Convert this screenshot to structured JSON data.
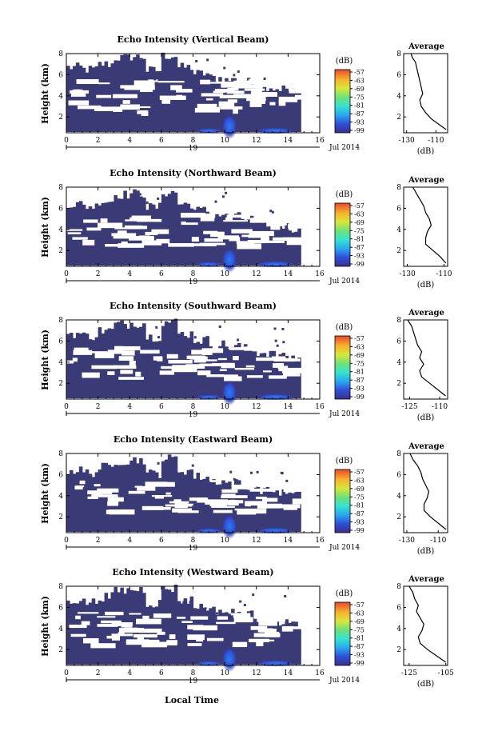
{
  "shared": {
    "xlabel": "Local Time",
    "ylabel": "Height (km)",
    "date_start": "19",
    "date_end": "Jul 2014",
    "colorbar_unit": "(dB)",
    "profile_title": "Average",
    "profile_xlabel": "(dB)"
  },
  "chart_data": [
    {
      "type": "heatmap",
      "title": "Echo Intensity (Vertical Beam)",
      "x_range": [
        0,
        16
      ],
      "x_ticks": [
        0,
        2,
        4,
        6,
        8,
        10,
        12,
        14,
        16
      ],
      "y_range": [
        0.5,
        8
      ],
      "y_ticks": [
        2,
        4,
        6,
        8
      ],
      "colorbar_ticks": [
        -57,
        -63,
        -69,
        -75,
        -81,
        -87,
        -93,
        -99
      ],
      "profile": {
        "x_ticks": [
          -130,
          -110
        ],
        "x_range": [
          -132,
          -102
        ],
        "points": [
          [
            -103,
            0.8
          ],
          [
            -107,
            1.2
          ],
          [
            -113,
            1.8
          ],
          [
            -117,
            2.4
          ],
          [
            -120,
            3.0
          ],
          [
            -121,
            3.6
          ],
          [
            -119,
            4.2
          ],
          [
            -120,
            4.8
          ],
          [
            -121,
            5.4
          ],
          [
            -122,
            6.0
          ],
          [
            -123,
            6.6
          ],
          [
            -124,
            7.2
          ],
          [
            -126,
            7.6
          ],
          [
            -127,
            8.0
          ]
        ]
      }
    },
    {
      "type": "heatmap",
      "title": "Echo Intensity (Northward Beam)",
      "x_range": [
        0,
        16
      ],
      "x_ticks": [
        0,
        2,
        4,
        6,
        8,
        10,
        12,
        14,
        16
      ],
      "y_range": [
        0.5,
        8
      ],
      "y_ticks": [
        2,
        4,
        6,
        8
      ],
      "colorbar_ticks": [
        -57,
        -63,
        -69,
        -75,
        -81,
        -87,
        -93,
        -99
      ],
      "profile": {
        "x_ticks": [
          -130,
          -110
        ],
        "x_range": [
          -132,
          -108
        ],
        "points": [
          [
            -109,
            0.8
          ],
          [
            -112,
            1.4
          ],
          [
            -116,
            2.0
          ],
          [
            -120,
            2.6
          ],
          [
            -120,
            3.2
          ],
          [
            -119,
            3.8
          ],
          [
            -117,
            4.4
          ],
          [
            -118,
            5.0
          ],
          [
            -120,
            5.6
          ],
          [
            -121,
            6.2
          ],
          [
            -123,
            6.8
          ],
          [
            -125,
            7.4
          ],
          [
            -127,
            8.0
          ]
        ]
      }
    },
    {
      "type": "heatmap",
      "title": "Echo Intensity (Southward Beam)",
      "x_range": [
        0,
        16
      ],
      "x_ticks": [
        0,
        2,
        4,
        6,
        8,
        10,
        12,
        14,
        16
      ],
      "y_range": [
        0.5,
        8
      ],
      "y_ticks": [
        2,
        4,
        6,
        8
      ],
      "colorbar_ticks": [
        -57,
        -63,
        -69,
        -75,
        -81,
        -87,
        -93,
        -99
      ],
      "profile": {
        "x_ticks": [
          -125,
          -110
        ],
        "x_range": [
          -128,
          -106
        ],
        "points": [
          [
            -107,
            0.8
          ],
          [
            -111,
            1.4
          ],
          [
            -115,
            2.0
          ],
          [
            -119,
            2.6
          ],
          [
            -120,
            3.2
          ],
          [
            -118,
            3.8
          ],
          [
            -120,
            4.4
          ],
          [
            -119,
            5.0
          ],
          [
            -121,
            5.6
          ],
          [
            -122,
            6.2
          ],
          [
            -123,
            6.8
          ],
          [
            -124,
            7.4
          ],
          [
            -126,
            8.0
          ]
        ]
      }
    },
    {
      "type": "heatmap",
      "title": "Echo Intensity (Eastward Beam)",
      "x_range": [
        0,
        16
      ],
      "x_ticks": [
        0,
        2,
        4,
        6,
        8,
        10,
        12,
        14,
        16
      ],
      "y_range": [
        0.5,
        8
      ],
      "y_ticks": [
        2,
        4,
        6,
        8
      ],
      "colorbar_ticks": [
        -57,
        -63,
        -69,
        -75,
        -81,
        -87,
        -93,
        -99
      ],
      "profile": {
        "x_ticks": [
          -130,
          -110
        ],
        "x_range": [
          -132,
          -104
        ],
        "points": [
          [
            -105,
            0.8
          ],
          [
            -110,
            1.4
          ],
          [
            -115,
            2.0
          ],
          [
            -119,
            2.6
          ],
          [
            -119,
            3.2
          ],
          [
            -117,
            3.8
          ],
          [
            -116,
            4.4
          ],
          [
            -118,
            5.0
          ],
          [
            -120,
            5.6
          ],
          [
            -121,
            6.2
          ],
          [
            -123,
            6.8
          ],
          [
            -126,
            7.4
          ],
          [
            -128,
            8.0
          ]
        ]
      }
    },
    {
      "type": "heatmap",
      "title": "Echo Intensity (Westward Beam)",
      "x_range": [
        0,
        16
      ],
      "x_ticks": [
        0,
        2,
        4,
        6,
        8,
        10,
        12,
        14,
        16
      ],
      "y_range": [
        0.5,
        8
      ],
      "y_ticks": [
        2,
        4,
        6,
        8
      ],
      "colorbar_ticks": [
        -57,
        -63,
        -69,
        -75,
        -81,
        -87,
        -93,
        -99
      ],
      "profile": {
        "x_ticks": [
          -125,
          -105
        ],
        "x_range": [
          -128,
          -104
        ],
        "points": [
          [
            -105,
            0.8
          ],
          [
            -110,
            1.4
          ],
          [
            -115,
            2.0
          ],
          [
            -119,
            2.6
          ],
          [
            -120,
            3.2
          ],
          [
            -118,
            3.8
          ],
          [
            -117,
            4.4
          ],
          [
            -119,
            5.0
          ],
          [
            -121,
            5.6
          ],
          [
            -120,
            6.2
          ],
          [
            -122,
            6.8
          ],
          [
            -123,
            7.4
          ],
          [
            -125,
            8.0
          ]
        ]
      }
    }
  ]
}
